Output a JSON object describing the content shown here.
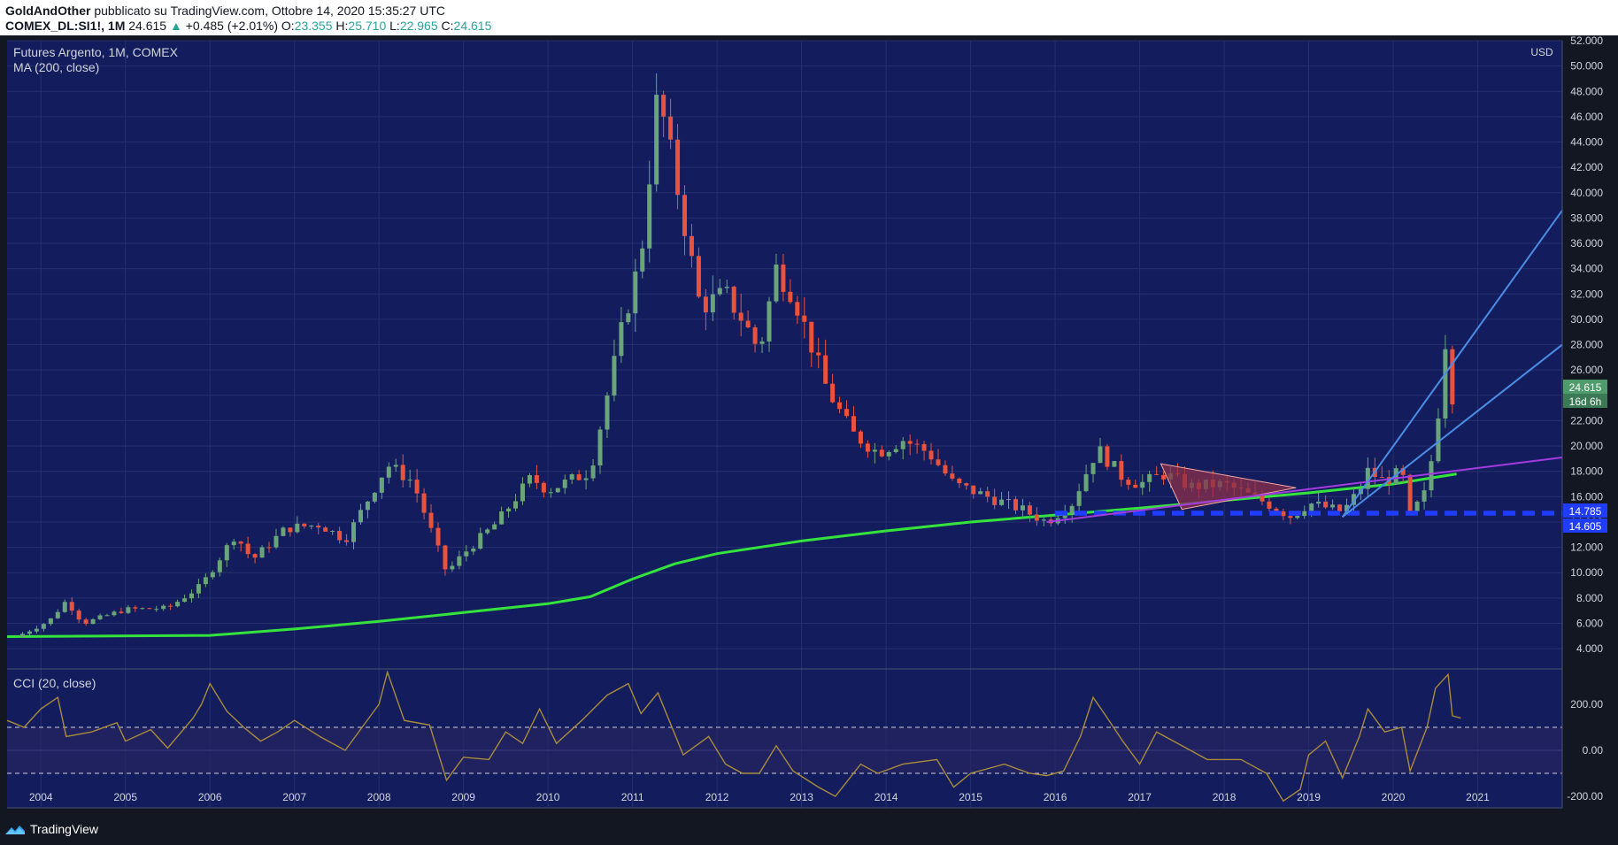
{
  "header": {
    "author": "GoldAndOther",
    "published": "pubblicato su TradingView.com, Ottobre 14, 2020 15:35:27 UTC",
    "symbol": "COMEX_DL:SI1!, 1M",
    "last": "24.615",
    "change": "+0.485 (+2.01%)",
    "open_label": "O:",
    "open": "23.355",
    "high_label": "H:",
    "high": "25.710",
    "low_label": "L:",
    "low": "22.965",
    "close_label": "C:",
    "close": "24.615"
  },
  "legend": {
    "title": "Futures Argento, 1M, COMEX",
    "ma": "MA (200, close)",
    "cci": "CCI (20, close)"
  },
  "price_axis": {
    "currency": "USD"
  },
  "badges": {
    "last_price": "24.615",
    "countdown": "16d 6h",
    "level_1": "14.785",
    "level_2": "14.605"
  },
  "footer": {
    "brand": "TradingView"
  },
  "colors": {
    "background": "#131722",
    "up": "#6aa57a",
    "down": "#e9533d",
    "ma": "#35e33d",
    "cci": "#a88b3b",
    "dashed_level": "#1f3cff",
    "trend": "#4a8de4",
    "channel": "#a33be0",
    "triangle": "#8a2f4a"
  },
  "chart_data": [
    {
      "type": "candlestick",
      "title": "Futures Argento, 1M, COMEX",
      "ylabel": "USD",
      "ylim": [
        2.4,
        52.0
      ],
      "yticks": [
        4,
        6,
        8,
        10,
        12,
        14,
        16,
        18,
        20,
        22,
        24,
        26,
        28,
        30,
        32,
        34,
        36,
        38,
        40,
        42,
        44,
        46,
        48,
        50,
        52
      ],
      "ytick_labels": [
        "4.000",
        "6.000",
        "8.000",
        "10.000",
        "12.000",
        "14.000",
        "16.000",
        "18.000",
        "20.000",
        "22.000",
        "24.000",
        "26.000",
        "28.000",
        "30.000",
        "32.000",
        "34.000",
        "36.000",
        "38.000",
        "40.000",
        "42.000",
        "44.000",
        "46.000",
        "48.000",
        "50.000",
        "52.000"
      ],
      "xlim": [
        2003.6,
        2022.0
      ],
      "xticks": [
        2004,
        2005,
        2006,
        2007,
        2008,
        2009,
        2010,
        2011,
        2012,
        2013,
        2014,
        2015,
        2016,
        2017,
        2018,
        2019,
        2020,
        2021
      ],
      "xtick_labels": [
        "2004",
        "2005",
        "2006",
        "2007",
        "2008",
        "2009",
        "2010",
        "2011",
        "2012",
        "2013",
        "2014",
        "2015",
        "2016",
        "2017",
        "2018",
        "2019",
        "2020",
        "2021"
      ],
      "grid": true,
      "series": [
        {
          "name": "Futures Argento",
          "kind": "candles",
          "anchors": [
            [
              2003.7,
              4.9
            ],
            [
              2004.1,
              6.2
            ],
            [
              2004.3,
              7.8
            ],
            [
              2004.5,
              6.0
            ],
            [
              2005.0,
              7.1
            ],
            [
              2005.5,
              7.2
            ],
            [
              2005.9,
              9.0
            ],
            [
              2006.3,
              13.0
            ],
            [
              2006.5,
              11.0
            ],
            [
              2006.9,
              13.5
            ],
            [
              2007.3,
              13.8
            ],
            [
              2007.6,
              12.6
            ],
            [
              2008.1,
              18.5
            ],
            [
              2008.4,
              17.2
            ],
            [
              2008.8,
              10.0
            ],
            [
              2009.0,
              11.5
            ],
            [
              2009.4,
              14.0
            ],
            [
              2009.8,
              17.5
            ],
            [
              2010.0,
              16.5
            ],
            [
              2010.5,
              18.0
            ],
            [
              2010.9,
              30.0
            ],
            [
              2011.1,
              35.0
            ],
            [
              2011.3,
              48.0
            ],
            [
              2011.6,
              38.0
            ],
            [
              2011.8,
              31.0
            ],
            [
              2012.1,
              32.0
            ],
            [
              2012.3,
              30.0
            ],
            [
              2012.5,
              27.5
            ],
            [
              2012.7,
              34.0
            ],
            [
              2012.9,
              32.0
            ],
            [
              2013.3,
              24.5
            ],
            [
              2013.6,
              21.0
            ],
            [
              2013.9,
              19.5
            ],
            [
              2014.2,
              20.5
            ],
            [
              2014.5,
              19.5
            ],
            [
              2014.8,
              17.0
            ],
            [
              2015.0,
              16.5
            ],
            [
              2015.6,
              15.0
            ],
            [
              2015.9,
              14.0
            ],
            [
              2016.2,
              15.5
            ],
            [
              2016.5,
              19.8
            ],
            [
              2016.8,
              17.5
            ],
            [
              2017.0,
              17.0
            ],
            [
              2017.3,
              17.8
            ],
            [
              2017.6,
              16.8
            ],
            [
              2018.0,
              17.0
            ],
            [
              2018.5,
              15.5
            ],
            [
              2018.8,
              14.4
            ],
            [
              2019.0,
              15.5
            ],
            [
              2019.4,
              14.8
            ],
            [
              2019.6,
              16.5
            ],
            [
              2019.7,
              18.0
            ],
            [
              2019.9,
              17.2
            ],
            [
              2020.1,
              18.0
            ],
            [
              2020.2,
              14.5
            ],
            [
              2020.4,
              16.5
            ],
            [
              2020.55,
              23.5
            ],
            [
              2020.62,
              28.5
            ],
            [
              2020.7,
              24.0
            ],
            [
              2020.78,
              24.6
            ]
          ]
        },
        {
          "name": "MA (200, close)",
          "kind": "line",
          "points": [
            [
              2003.6,
              4.95
            ],
            [
              2006.0,
              5.05
            ],
            [
              2007.0,
              5.55
            ],
            [
              2008.0,
              6.15
            ],
            [
              2009.0,
              6.85
            ],
            [
              2010.0,
              7.55
            ],
            [
              2010.5,
              8.1
            ],
            [
              2011.0,
              9.5
            ],
            [
              2011.5,
              10.7
            ],
            [
              2012.0,
              11.5
            ],
            [
              2013.0,
              12.5
            ],
            [
              2014.0,
              13.3
            ],
            [
              2015.0,
              14.0
            ],
            [
              2016.0,
              14.55
            ],
            [
              2017.0,
              15.1
            ],
            [
              2018.0,
              15.7
            ],
            [
              2019.0,
              16.3
            ],
            [
              2020.0,
              17.0
            ],
            [
              2020.75,
              17.8
            ]
          ]
        }
      ],
      "levels": [
        14.785,
        14.605
      ],
      "last_price": 24.615
    },
    {
      "type": "line",
      "title": "CCI (20, close)",
      "ylim": [
        -250,
        350
      ],
      "yticks": [
        200,
        0,
        -200
      ],
      "ytick_labels": [
        "200.00",
        "0.00",
        "-200.00"
      ],
      "bands": [
        100,
        -100
      ],
      "series": [
        {
          "name": "CCI (20, close)",
          "points": [
            [
              2003.6,
              130
            ],
            [
              2003.8,
              100
            ],
            [
              2004.0,
              180
            ],
            [
              2004.2,
              230
            ],
            [
              2004.3,
              60
            ],
            [
              2004.6,
              80
            ],
            [
              2004.9,
              120
            ],
            [
              2005.0,
              40
            ],
            [
              2005.3,
              90
            ],
            [
              2005.5,
              10
            ],
            [
              2005.8,
              140
            ],
            [
              2005.9,
              200
            ],
            [
              2006.0,
              290
            ],
            [
              2006.2,
              170
            ],
            [
              2006.4,
              100
            ],
            [
              2006.6,
              40
            ],
            [
              2006.8,
              80
            ],
            [
              2007.0,
              130
            ],
            [
              2007.3,
              60
            ],
            [
              2007.6,
              0
            ],
            [
              2008.0,
              200
            ],
            [
              2008.1,
              340
            ],
            [
              2008.3,
              130
            ],
            [
              2008.6,
              110
            ],
            [
              2008.8,
              -130
            ],
            [
              2009.0,
              -30
            ],
            [
              2009.3,
              -40
            ],
            [
              2009.5,
              80
            ],
            [
              2009.7,
              30
            ],
            [
              2009.9,
              180
            ],
            [
              2010.1,
              30
            ],
            [
              2010.4,
              130
            ],
            [
              2010.7,
              240
            ],
            [
              2010.95,
              290
            ],
            [
              2011.1,
              160
            ],
            [
              2011.3,
              250
            ],
            [
              2011.6,
              -20
            ],
            [
              2011.9,
              60
            ],
            [
              2012.1,
              -60
            ],
            [
              2012.3,
              -100
            ],
            [
              2012.5,
              -100
            ],
            [
              2012.7,
              20
            ],
            [
              2012.9,
              -90
            ],
            [
              2013.2,
              -160
            ],
            [
              2013.4,
              -200
            ],
            [
              2013.7,
              -60
            ],
            [
              2013.9,
              -100
            ],
            [
              2014.2,
              -60
            ],
            [
              2014.6,
              -40
            ],
            [
              2014.8,
              -160
            ],
            [
              2015.0,
              -100
            ],
            [
              2015.4,
              -60
            ],
            [
              2015.7,
              -100
            ],
            [
              2015.9,
              -110
            ],
            [
              2016.1,
              -90
            ],
            [
              2016.3,
              60
            ],
            [
              2016.45,
              230
            ],
            [
              2016.6,
              150
            ],
            [
              2016.8,
              40
            ],
            [
              2017.0,
              -60
            ],
            [
              2017.2,
              80
            ],
            [
              2017.5,
              20
            ],
            [
              2017.8,
              -40
            ],
            [
              2018.2,
              -40
            ],
            [
              2018.5,
              -100
            ],
            [
              2018.7,
              -220
            ],
            [
              2018.9,
              -170
            ],
            [
              2019.0,
              -20
            ],
            [
              2019.2,
              40
            ],
            [
              2019.4,
              -120
            ],
            [
              2019.6,
              60
            ],
            [
              2019.7,
              180
            ],
            [
              2019.9,
              80
            ],
            [
              2020.1,
              100
            ],
            [
              2020.2,
              -90
            ],
            [
              2020.4,
              100
            ],
            [
              2020.5,
              270
            ],
            [
              2020.65,
              330
            ],
            [
              2020.7,
              150
            ],
            [
              2020.8,
              140
            ]
          ]
        }
      ]
    }
  ]
}
